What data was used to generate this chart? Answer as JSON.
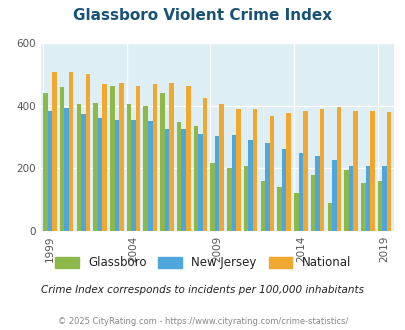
{
  "title": "Glassboro Violent Crime Index",
  "years": [
    1999,
    2000,
    2001,
    2002,
    2003,
    2004,
    2005,
    2006,
    2007,
    2008,
    2009,
    2010,
    2011,
    2012,
    2013,
    2014,
    2015,
    2016,
    2017,
    2018,
    2019
  ],
  "glassboro": [
    440,
    458,
    405,
    408,
    462,
    405,
    400,
    440,
    348,
    335,
    218,
    202,
    208,
    160,
    140,
    120,
    178,
    88,
    196,
    153,
    158
  ],
  "new_jersey": [
    383,
    392,
    372,
    362,
    353,
    353,
    352,
    325,
    326,
    308,
    303,
    307,
    290,
    282,
    262,
    250,
    240,
    228,
    208,
    208,
    208
  ],
  "national": [
    507,
    507,
    501,
    468,
    473,
    463,
    469,
    473,
    464,
    425,
    405,
    390,
    390,
    366,
    375,
    383,
    390,
    397,
    383,
    383,
    379
  ],
  "glassboro_color": "#8db94a",
  "nj_color": "#4ea6dc",
  "national_color": "#f0a830",
  "ylim": [
    0,
    600
  ],
  "yticks": [
    0,
    200,
    400,
    600
  ],
  "xlabel_ticks": [
    1999,
    2004,
    2009,
    2014,
    2019
  ],
  "footnote": "Crime Index corresponds to incidents per 100,000 inhabitants",
  "copyright": "© 2025 CityRating.com - https://www.cityrating.com/crime-statistics/",
  "title_color": "#1a5276",
  "legend_labels": [
    "Glassboro",
    "New Jersey",
    "National"
  ],
  "grid_color": "#ffffff",
  "axis_bg": "#ddeef5"
}
